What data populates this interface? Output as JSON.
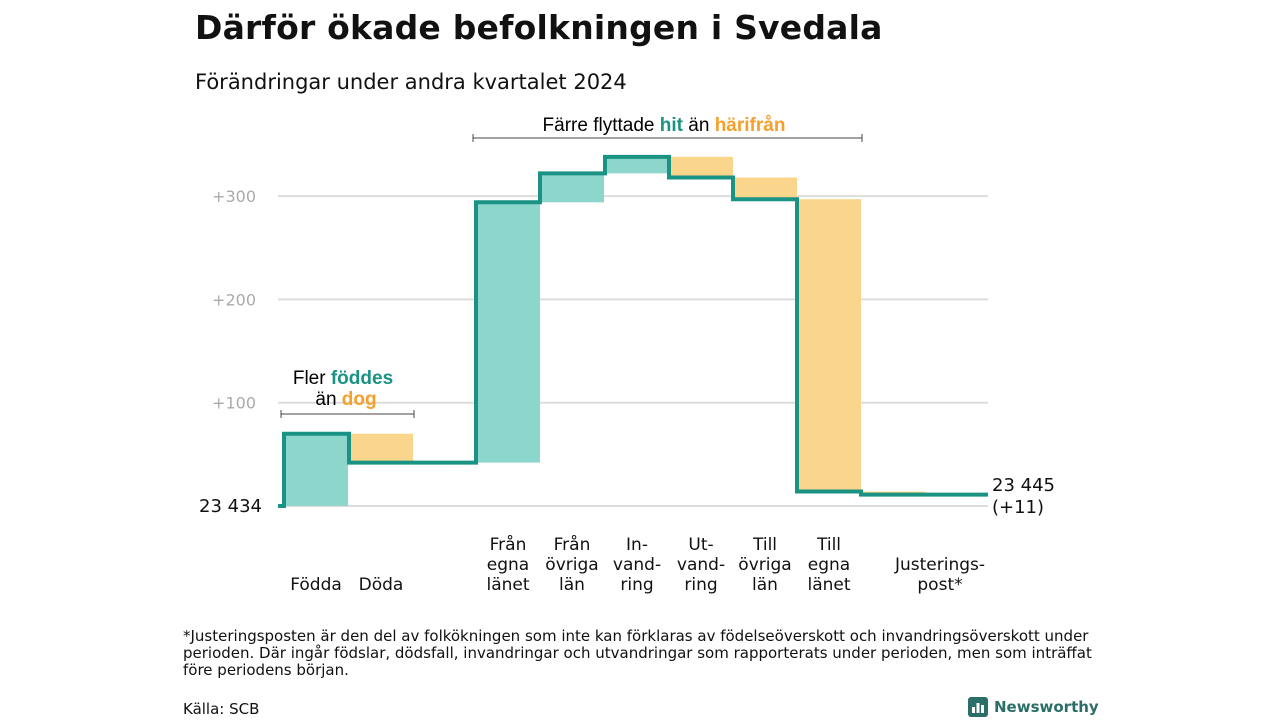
{
  "title": "Därför ökade befolkningen i Svedala",
  "subtitle": "Förändringar under andra kvartalet 2024",
  "footnote": "*Justeringsposten är den del av folkökningen som inte kan förklaras av födelseöverskott och invandringsöverskott under perioden. Där ingår födslar, dödsfall, invandringar och utvandringar som rapporterats under perioden, men som inträffat före periodens början.",
  "source": "Källa: SCB",
  "logo_text": "Newsworthy",
  "colors": {
    "increase": "#8dd6cc",
    "decrease": "#fad58c",
    "line": "#1a9384",
    "accent_teal": "#1a9384",
    "accent_orange": "#f4a02a",
    "grid": "#dddddd",
    "tick": "#aaaaaa"
  },
  "chart_data": {
    "type": "bar",
    "subtype": "waterfall",
    "start_value": 23434,
    "start_label": "23  434",
    "end_value": 23445,
    "end_label_line1": "23 445",
    "end_label_line2": "(+11)",
    "baseline": 23434,
    "y_ticks": [
      {
        "value": 100,
        "label": "+100"
      },
      {
        "value": 200,
        "label": "+200"
      },
      {
        "value": 300,
        "label": "+300"
      }
    ],
    "ylim": [
      0,
      345
    ],
    "steps": [
      {
        "category": "Födda",
        "label_lines": [
          "Födda"
        ],
        "change": 70
      },
      {
        "category": "Döda",
        "label_lines": [
          "Döda"
        ],
        "change": -28
      },
      {
        "category": "Från egna länet",
        "label_lines": [
          "Från",
          "egna",
          "länet"
        ],
        "change": 252
      },
      {
        "category": "Från övriga län",
        "label_lines": [
          "Från",
          "övriga",
          "län"
        ],
        "change": 28
      },
      {
        "category": "Invandring",
        "label_lines": [
          "In-",
          "vand-",
          "ring"
        ],
        "change": 16
      },
      {
        "category": "Utvandring",
        "label_lines": [
          "Ut-",
          "vand-",
          "ring"
        ],
        "change": -20
      },
      {
        "category": "Till övriga län",
        "label_lines": [
          "Till",
          "övriga",
          "län"
        ],
        "change": -21
      },
      {
        "category": "Till egna länet",
        "label_lines": [
          "Till",
          "egna",
          "länet"
        ],
        "change": -283
      },
      {
        "category": "Justeringspost*",
        "label_lines": [
          "Justerings-",
          "post*"
        ],
        "change": -3
      }
    ],
    "annotations": [
      {
        "id": "births",
        "parts": [
          "Fler ",
          "föddes",
          "än ",
          "dog"
        ]
      },
      {
        "id": "moves",
        "parts": [
          "Färre flyttade ",
          "hit",
          " än ",
          "härifrån"
        ]
      }
    ]
  }
}
